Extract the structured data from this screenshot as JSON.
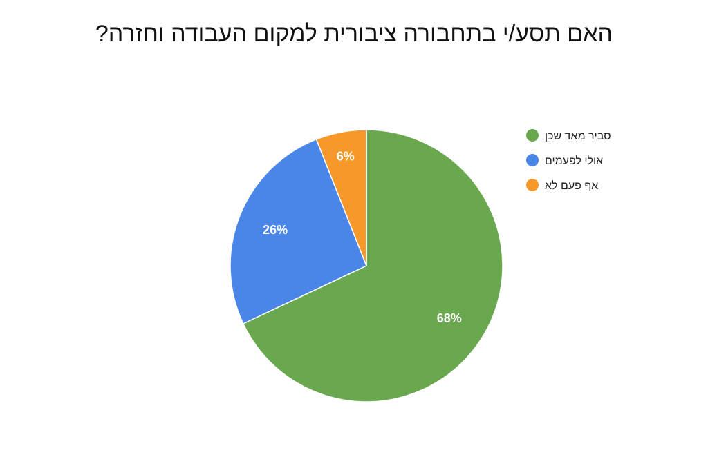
{
  "chart_data": {
    "type": "pie",
    "title": "האם תסע/י בתחבורה ציבורית למקום העבודה וחזרה?",
    "categories": [
      "סביר מאד שכן",
      "אולי לפעמים",
      "אף פעם לא"
    ],
    "values": [
      68,
      26,
      6
    ],
    "labels": [
      "68%",
      "26%",
      "6%"
    ],
    "colors": [
      "#6aa84f",
      "#4a86e8",
      "#f6982a"
    ],
    "legend_position": "right",
    "start": "top",
    "direction": "clockwise"
  }
}
